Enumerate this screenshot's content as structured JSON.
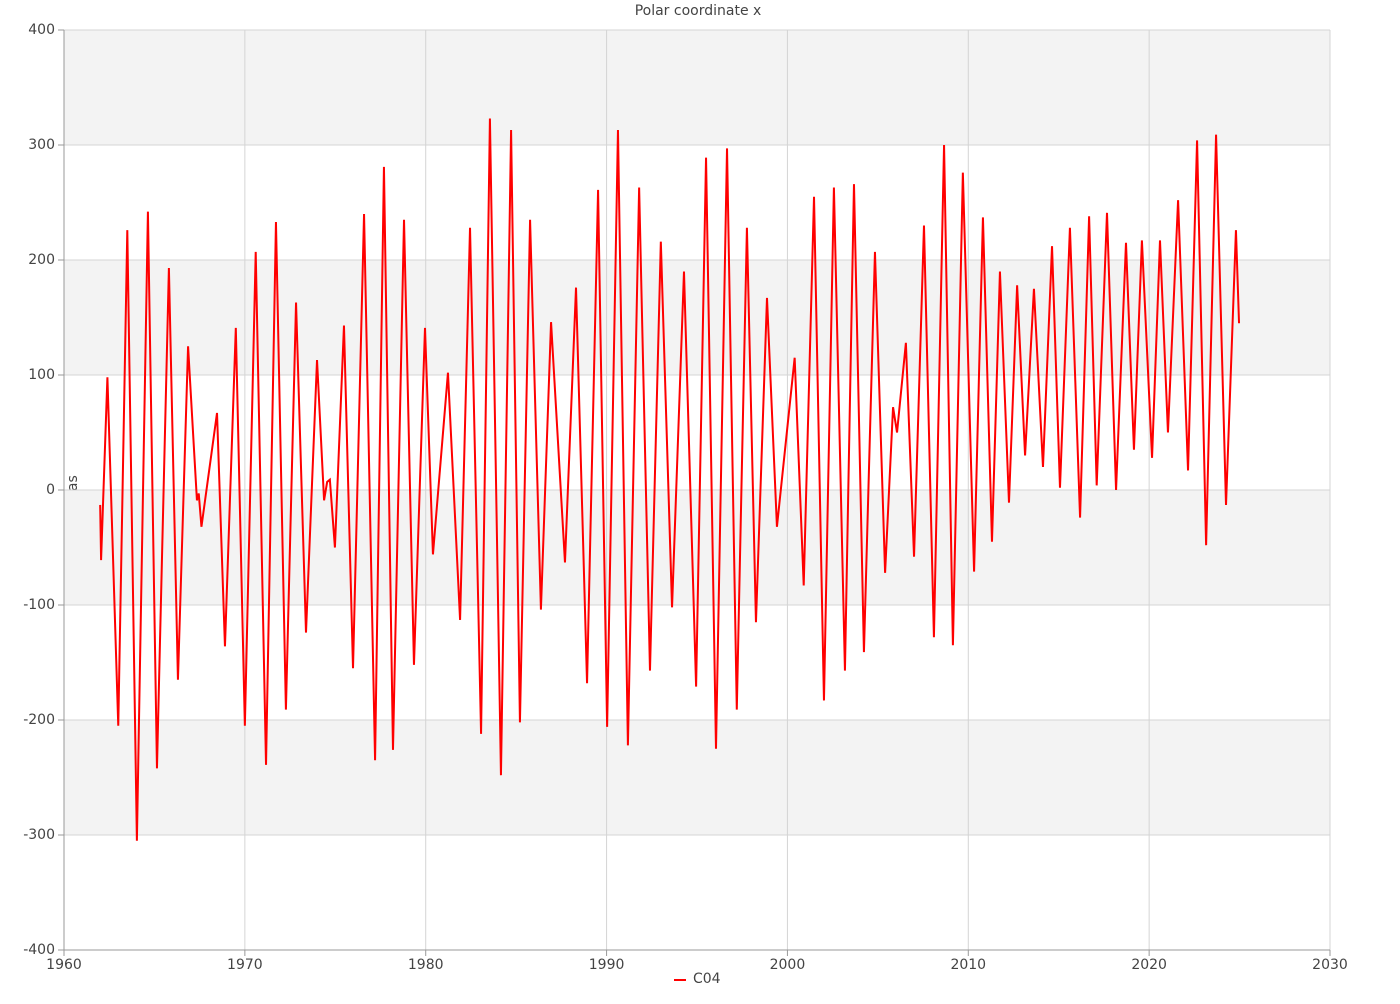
{
  "chart_data": {
    "type": "line",
    "title": "Polar coordinate x",
    "y_label": "mas",
    "x": [
      1962.0,
      1962.05,
      1962.4,
      1963.0,
      1963.5,
      1964.03,
      1964.64,
      1965.14,
      1965.8,
      1966.3,
      1966.86,
      1967.35,
      1967.45,
      1967.6,
      1968.46,
      1968.9,
      1969.5,
      1970.0,
      1970.6,
      1971.17,
      1971.72,
      1972.27,
      1972.83,
      1973.38,
      1973.99,
      1974.38,
      1974.55,
      1974.7,
      1974.98,
      1975.48,
      1975.98,
      1976.59,
      1977.2,
      1977.69,
      1978.19,
      1978.8,
      1979.35,
      1979.96,
      1980.4,
      1981.23,
      1981.9,
      1982.45,
      1983.06,
      1983.55,
      1984.16,
      1984.72,
      1985.21,
      1985.77,
      1986.37,
      1986.93,
      1987.7,
      1988.31,
      1988.92,
      1989.53,
      1990.03,
      1990.63,
      1991.18,
      1991.8,
      1992.4,
      1993.0,
      1993.62,
      1994.28,
      1994.95,
      1995.5,
      1996.05,
      1996.66,
      1997.2,
      1997.76,
      1998.26,
      1998.87,
      1999.42,
      2000.4,
      2000.9,
      2001.47,
      2002.02,
      2002.57,
      2003.18,
      2003.68,
      2004.23,
      2004.84,
      2005.4,
      2005.84,
      2006.06,
      2006.55,
      2007.0,
      2007.55,
      2008.1,
      2008.66,
      2009.15,
      2009.7,
      2010.32,
      2010.81,
      2011.31,
      2011.75,
      2012.25,
      2012.7,
      2013.14,
      2013.63,
      2014.13,
      2014.63,
      2015.07,
      2015.62,
      2016.18,
      2016.68,
      2017.1,
      2017.67,
      2018.17,
      2018.72,
      2019.16,
      2019.6,
      2020.16,
      2020.6,
      2021.04,
      2021.6,
      2022.15,
      2022.65,
      2023.15,
      2023.7,
      2024.25,
      2024.8,
      2024.97
    ],
    "series": [
      {
        "name": "C04",
        "color": "#ff0000",
        "values": [
          -13,
          -61,
          98,
          -205,
          226,
          -305,
          242,
          -242,
          193,
          -165,
          125,
          -9,
          -3,
          -32,
          67,
          -136,
          141,
          -205,
          207,
          -239,
          233,
          -191,
          163,
          -124,
          113,
          -9,
          7,
          9,
          -50,
          143,
          -155,
          240,
          -235,
          281,
          -226,
          235,
          -152,
          141,
          -56,
          102,
          -113,
          228,
          -212,
          323,
          -248,
          313,
          -202,
          235,
          -104,
          146,
          -63,
          176,
          -168,
          261,
          -206,
          313,
          -222,
          263,
          -157,
          216,
          -102,
          190,
          -171,
          289,
          -225,
          297,
          -191,
          228,
          -115,
          167,
          -32,
          115,
          -83,
          255,
          -183,
          263,
          -157,
          266,
          -141,
          207,
          -72,
          72,
          50,
          128,
          -58,
          230,
          -128,
          300,
          -135,
          276,
          -71,
          237,
          -45,
          190,
          -11,
          178,
          30,
          175,
          20,
          212,
          2,
          228,
          -24,
          238,
          4,
          241,
          0,
          215,
          35,
          217,
          28,
          217,
          50,
          252,
          17,
          304,
          -48,
          309,
          -13,
          226,
          145
        ]
      }
    ],
    "xlim": [
      1960,
      2030
    ],
    "xticks": [
      1960,
      1970,
      1980,
      1990,
      2000,
      2010,
      2020,
      2030
    ],
    "ylim": [
      -400,
      400
    ],
    "yticks": [
      -400,
      -300,
      -200,
      -100,
      0,
      100,
      200,
      300,
      400
    ],
    "grid": true
  }
}
